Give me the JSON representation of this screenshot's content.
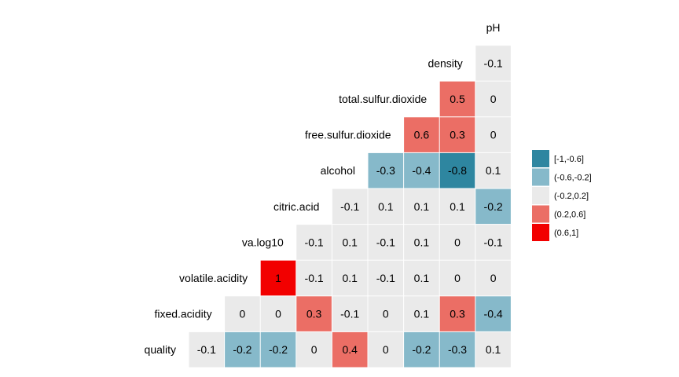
{
  "chart_data": {
    "type": "heatmap",
    "variables": [
      "quality",
      "fixed.acidity",
      "volatile.acidity",
      "va.log10",
      "citric.acid",
      "alcohol",
      "free.sulfur.dioxide",
      "total.sulfur.dioxide",
      "density",
      "pH"
    ],
    "matrix": [
      [
        -0.1,
        -0.2,
        -0.2,
        0,
        0.4,
        0,
        -0.2,
        -0.3,
        0.1
      ],
      [
        0,
        0,
        0.3,
        -0.1,
        0,
        0.1,
        0.3,
        -0.4
      ],
      [
        1,
        -0.1,
        0.1,
        -0.1,
        0.1,
        0,
        0
      ],
      [
        -0.1,
        0.1,
        -0.1,
        0.1,
        0,
        -0.1
      ],
      [
        -0.1,
        0.1,
        0.1,
        0.1,
        -0.2
      ],
      [
        -0.3,
        -0.4,
        -0.8,
        0.1
      ],
      [
        0.6,
        0.3,
        0
      ],
      [
        0.5,
        0
      ],
      [
        -0.1
      ]
    ],
    "legend": {
      "position": "right",
      "bins": [
        {
          "label": "[-1,-0.6]",
          "color": "#2E86A0"
        },
        {
          "label": "(-0.6,-0.2]",
          "color": "#86B9CA"
        },
        {
          "label": "(-0.2,0.2]",
          "color": "#EAEAEA"
        },
        {
          "label": "(0.2,0.6]",
          "color": "#EB6E65"
        },
        {
          "label": "(0.6,1]",
          "color": "#F20000"
        }
      ]
    }
  }
}
